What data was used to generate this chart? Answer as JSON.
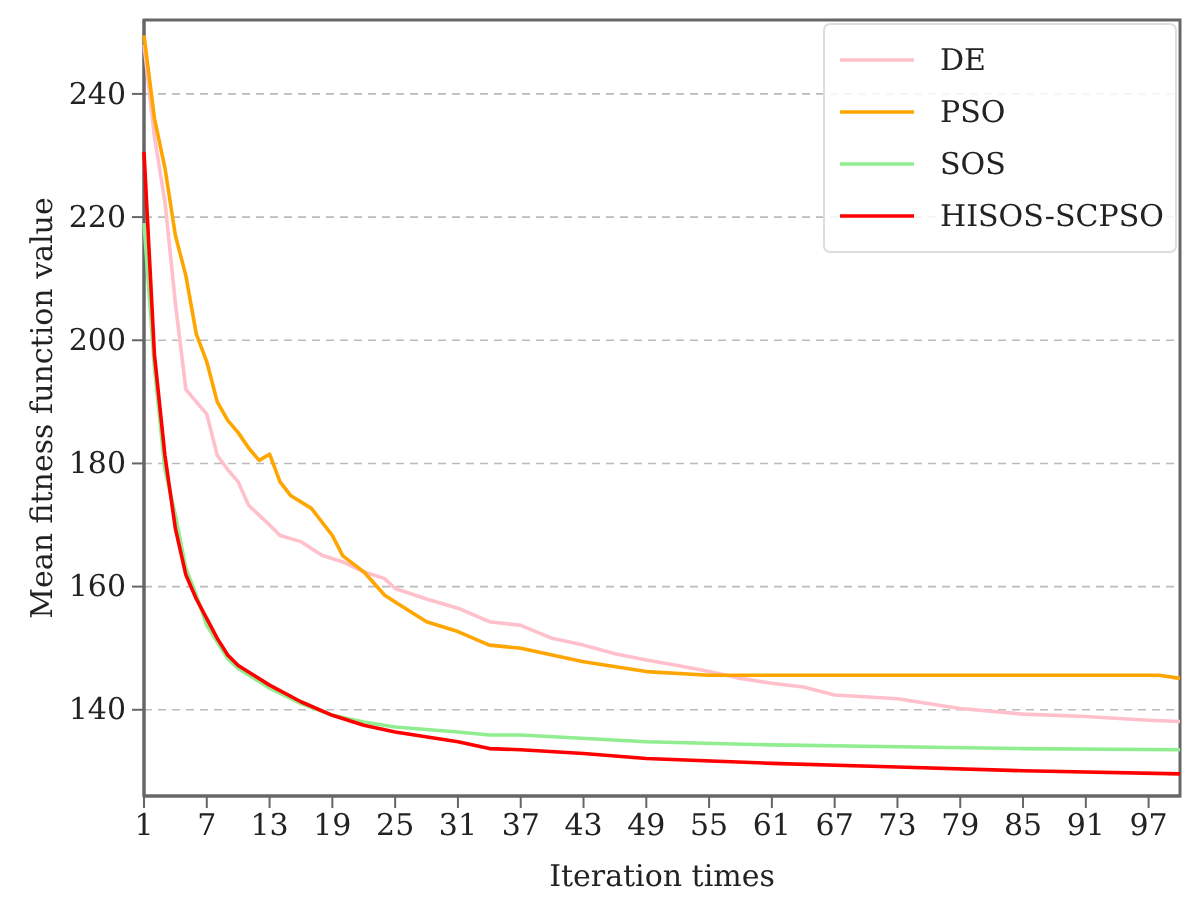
{
  "chart_data": {
    "type": "line",
    "xlabel": "Iteration times",
    "ylabel": "Mean fitness function value",
    "xlim": [
      1,
      100
    ],
    "ylim": [
      126,
      252
    ],
    "xticks": [
      1,
      7,
      13,
      19,
      25,
      31,
      37,
      43,
      49,
      55,
      61,
      67,
      73,
      79,
      85,
      91,
      97
    ],
    "yticks": [
      140,
      160,
      180,
      200,
      220,
      240
    ],
    "grid": "y",
    "legend": "top right",
    "line_style": "solid",
    "series": [
      {
        "name": "DE",
        "color": "#ffc0cb",
        "x": [
          1,
          2,
          3,
          4,
          5,
          6,
          7,
          8,
          9,
          10,
          11,
          12,
          13,
          14,
          16,
          18,
          20,
          22,
          24,
          25,
          28,
          31,
          34,
          37,
          40,
          43,
          46,
          49,
          52,
          55,
          58,
          61,
          64,
          67,
          73,
          79,
          85,
          91,
          97,
          100
        ],
        "values": [
          248,
          233,
          222.5,
          206,
          192,
          190,
          188,
          181.3,
          179,
          177,
          173.2,
          171.6,
          170,
          168.3,
          167.3,
          165.1,
          164,
          162.4,
          161.3,
          159.7,
          158,
          156.5,
          154.3,
          153.7,
          151.6,
          150.5,
          149.1,
          148.1,
          147.2,
          146.2,
          145.1,
          144.3,
          143.7,
          142.4,
          141.8,
          140.2,
          139.3,
          138.9,
          138.3,
          138.1
        ]
      },
      {
        "name": "PSO",
        "color": "#ffa500",
        "x": [
          1,
          2,
          3,
          4,
          5,
          6,
          7,
          8,
          9,
          10,
          11,
          12,
          13,
          14,
          15,
          17,
          19,
          20,
          22,
          24,
          25,
          28,
          31,
          34,
          37,
          43,
          49,
          55,
          61,
          73,
          85,
          98,
          100
        ],
        "values": [
          249.5,
          236,
          228,
          217,
          210.5,
          201,
          196.5,
          190,
          187,
          185,
          182.5,
          180.5,
          181.5,
          177,
          174.8,
          172.7,
          168.3,
          165,
          162.4,
          158.6,
          157.5,
          154.3,
          152.7,
          150.5,
          150,
          147.8,
          146.2,
          145.6,
          145.6,
          145.6,
          145.6,
          145.6,
          145.1
        ]
      },
      {
        "name": "SOS",
        "color": "#90ee90",
        "x": [
          1,
          2,
          3,
          4,
          5,
          6,
          7,
          8,
          9,
          10,
          13,
          16,
          19,
          22,
          25,
          31,
          34,
          37,
          49,
          61,
          73,
          85,
          100
        ],
        "values": [
          219,
          195.5,
          179,
          171.6,
          163,
          158.6,
          153.7,
          151,
          148.3,
          146.7,
          143.5,
          141,
          139.1,
          138,
          137.2,
          136.4,
          135.9,
          135.9,
          134.8,
          134.3,
          134,
          133.7,
          133.5
        ]
      },
      {
        "name": "HISOS-SCPSO",
        "color": "#ff0000",
        "x": [
          1,
          2,
          3,
          4,
          5,
          6,
          7,
          8,
          9,
          10,
          13,
          16,
          19,
          22,
          25,
          31,
          34,
          37,
          43,
          49,
          61,
          73,
          85,
          100
        ],
        "values": [
          230.6,
          197.6,
          181.3,
          169.4,
          161.9,
          158,
          154.8,
          151.6,
          148.9,
          147.2,
          144,
          141.3,
          139.1,
          137.5,
          136.4,
          134.8,
          133.7,
          133.5,
          132.9,
          132.1,
          131.3,
          130.7,
          130.1,
          129.6
        ]
      }
    ]
  }
}
